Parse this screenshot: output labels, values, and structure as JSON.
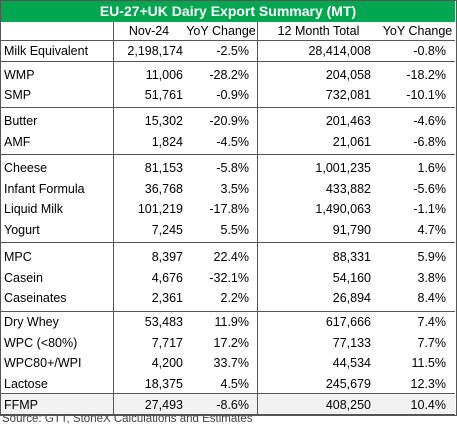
{
  "title": "EU-27+UK Dairy Export Summary (MT)",
  "headers": [
    "Nov-24",
    "YoY Change",
    "12 Month Total",
    "YoY Change"
  ],
  "groups": [
    {
      "rows": [
        [
          "Milk Equivalent",
          "2,198,174",
          "-2.5%",
          "28,414,008",
          "-0.8%"
        ]
      ]
    },
    {
      "rows": [
        [
          "WMP",
          "11,006",
          "-28.2%",
          "204,058",
          "-18.2%"
        ],
        [
          "SMP",
          "51,761",
          "-0.9%",
          "732,081",
          "-10.1%"
        ]
      ]
    },
    {
      "rows": [
        [
          "Butter",
          "15,302",
          "-20.9%",
          "201,463",
          "-4.6%"
        ],
        [
          "AMF",
          "1,824",
          "-4.5%",
          "21,061",
          "-6.8%"
        ]
      ]
    },
    {
      "rows": [
        [
          "Cheese",
          "81,153",
          "-5.8%",
          "1,001,235",
          "1.6%"
        ],
        [
          "Infant Formula",
          "36,768",
          "3.5%",
          "433,882",
          "-5.6%"
        ],
        [
          "Liquid Milk",
          "101,219",
          "-17.8%",
          "1,490,063",
          "-1.1%"
        ],
        [
          "Yogurt",
          "7,245",
          "5.5%",
          "91,790",
          "4.7%"
        ]
      ]
    },
    {
      "rows": [
        [
          "MPC",
          "8,397",
          "22.4%",
          "88,331",
          "5.9%"
        ],
        [
          "Casein",
          "4,676",
          "-32.1%",
          "54,160",
          "3.8%"
        ],
        [
          "Caseinates",
          "2,361",
          "2.2%",
          "26,894",
          "8.4%"
        ]
      ]
    },
    {
      "rows": [
        [
          "Dry Whey",
          "53,483",
          "11.9%",
          "617,666",
          "7.4%"
        ],
        [
          "WPC (<80%)",
          "7,717",
          "17.2%",
          "77,133",
          "7.7%"
        ],
        [
          "WPC80+/WPI",
          "4,200",
          "33.7%",
          "44,534",
          "11.5%"
        ],
        [
          "Lactose",
          "18,375",
          "4.5%",
          "245,679",
          "12.3%"
        ]
      ]
    },
    {
      "rows": [
        [
          "FFMP",
          "27,493",
          "-8.6%",
          "408,250",
          "10.4%"
        ]
      ]
    }
  ],
  "source": "Source: GTT, StoneX Calculations and Estimates"
}
